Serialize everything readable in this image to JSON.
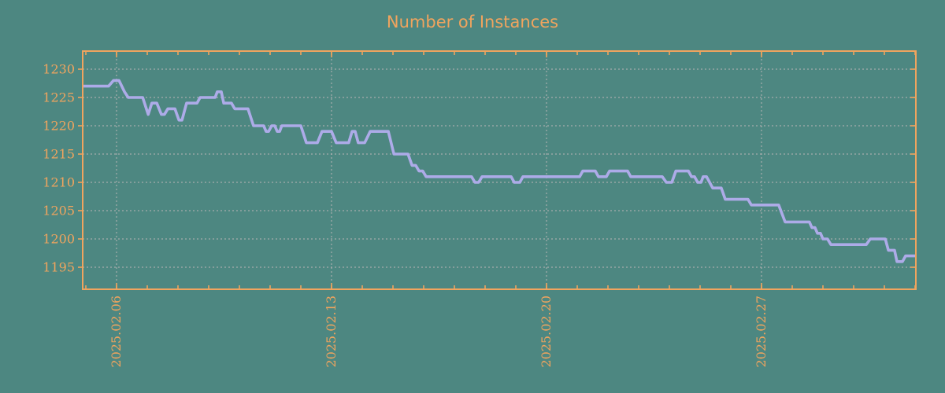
{
  "chart_data": {
    "type": "line",
    "title": "Number of Instances",
    "x_tick_labels": [
      "2025.02.06",
      "2025.02.13",
      "2025.02.20",
      "2025.02.27"
    ],
    "x_tick_day_offsets": [
      0,
      7,
      14,
      21
    ],
    "x_minor_tick_interval_days": 1,
    "x_axis_range_days": [
      -1.1,
      26.05
    ],
    "x_unit": "days since 2025-02-06",
    "y_tick_labels": [
      "1230",
      "1225",
      "1220",
      "1215",
      "1210",
      "1205",
      "1200",
      "1195"
    ],
    "y_tick_values": [
      1230,
      1225,
      1220,
      1215,
      1210,
      1205,
      1200,
      1195
    ],
    "y_axis_range": [
      1191.1,
      1233.2
    ],
    "grid": "dotted gray, horizontal at each y tick, vertical at weekly ticks",
    "legend_position": "none",
    "start_value": 1227,
    "end_value": 1197,
    "max_value": 1228,
    "min_value": 1196,
    "series": [
      {
        "name": "instances",
        "points": [
          [
            -1.1,
            1227
          ],
          [
            -0.26,
            1227
          ],
          [
            -0.1,
            1228
          ],
          [
            0.08,
            1228
          ],
          [
            0.26,
            1226
          ],
          [
            0.38,
            1225
          ],
          [
            0.85,
            1225
          ],
          [
            1.03,
            1222
          ],
          [
            1.15,
            1224
          ],
          [
            1.31,
            1224
          ],
          [
            1.46,
            1222
          ],
          [
            1.56,
            1222
          ],
          [
            1.67,
            1223
          ],
          [
            1.9,
            1223
          ],
          [
            2.03,
            1221
          ],
          [
            2.13,
            1221
          ],
          [
            2.28,
            1224
          ],
          [
            2.62,
            1224
          ],
          [
            2.72,
            1225
          ],
          [
            3.21,
            1225
          ],
          [
            3.28,
            1226
          ],
          [
            3.41,
            1226
          ],
          [
            3.49,
            1224
          ],
          [
            3.74,
            1224
          ],
          [
            3.85,
            1223
          ],
          [
            4.28,
            1223
          ],
          [
            4.46,
            1220
          ],
          [
            4.79,
            1220
          ],
          [
            4.87,
            1219
          ],
          [
            4.95,
            1219
          ],
          [
            5.05,
            1220
          ],
          [
            5.15,
            1220
          ],
          [
            5.23,
            1219
          ],
          [
            5.31,
            1219
          ],
          [
            5.38,
            1220
          ],
          [
            6.0,
            1220
          ],
          [
            6.18,
            1217
          ],
          [
            6.54,
            1217
          ],
          [
            6.69,
            1219
          ],
          [
            7.0,
            1219
          ],
          [
            7.15,
            1217
          ],
          [
            7.56,
            1217
          ],
          [
            7.67,
            1219
          ],
          [
            7.77,
            1219
          ],
          [
            7.87,
            1217
          ],
          [
            8.08,
            1217
          ],
          [
            8.26,
            1219
          ],
          [
            8.85,
            1219
          ],
          [
            9.03,
            1215
          ],
          [
            9.49,
            1215
          ],
          [
            9.62,
            1213
          ],
          [
            9.74,
            1213
          ],
          [
            9.85,
            1212
          ],
          [
            9.97,
            1212
          ],
          [
            10.08,
            1211
          ],
          [
            11.56,
            1211
          ],
          [
            11.67,
            1210
          ],
          [
            11.79,
            1210
          ],
          [
            11.9,
            1211
          ],
          [
            12.85,
            1211
          ],
          [
            12.95,
            1210
          ],
          [
            13.13,
            1210
          ],
          [
            13.23,
            1211
          ],
          [
            15.08,
            1211
          ],
          [
            15.18,
            1212
          ],
          [
            15.59,
            1212
          ],
          [
            15.69,
            1211
          ],
          [
            15.95,
            1211
          ],
          [
            16.05,
            1212
          ],
          [
            16.64,
            1212
          ],
          [
            16.74,
            1211
          ],
          [
            17.77,
            1211
          ],
          [
            17.9,
            1210
          ],
          [
            18.08,
            1210
          ],
          [
            18.21,
            1212
          ],
          [
            18.62,
            1212
          ],
          [
            18.72,
            1211
          ],
          [
            18.82,
            1211
          ],
          [
            18.92,
            1210
          ],
          [
            19.03,
            1210
          ],
          [
            19.1,
            1211
          ],
          [
            19.21,
            1211
          ],
          [
            19.31,
            1210
          ],
          [
            19.41,
            1209
          ],
          [
            19.69,
            1209
          ],
          [
            19.82,
            1207
          ],
          [
            20.56,
            1207
          ],
          [
            20.67,
            1206
          ],
          [
            21.56,
            1206
          ],
          [
            21.77,
            1203
          ],
          [
            22.56,
            1203
          ],
          [
            22.64,
            1202
          ],
          [
            22.74,
            1202
          ],
          [
            22.82,
            1201
          ],
          [
            22.92,
            1201
          ],
          [
            23.0,
            1200
          ],
          [
            23.15,
            1200
          ],
          [
            23.26,
            1199
          ],
          [
            24.41,
            1199
          ],
          [
            24.54,
            1200
          ],
          [
            25.03,
            1200
          ],
          [
            25.13,
            1198
          ],
          [
            25.33,
            1198
          ],
          [
            25.41,
            1196
          ],
          [
            25.59,
            1196
          ],
          [
            25.69,
            1197
          ],
          [
            26.03,
            1197
          ]
        ]
      }
    ]
  },
  "style": {
    "background_color": "#4d8781",
    "axis_color": "#f0a45e",
    "label_color": "#f0a45e",
    "title_color": "#f0a45e",
    "line_color": "#adabe8",
    "grid_color": "#b4b4b4"
  }
}
